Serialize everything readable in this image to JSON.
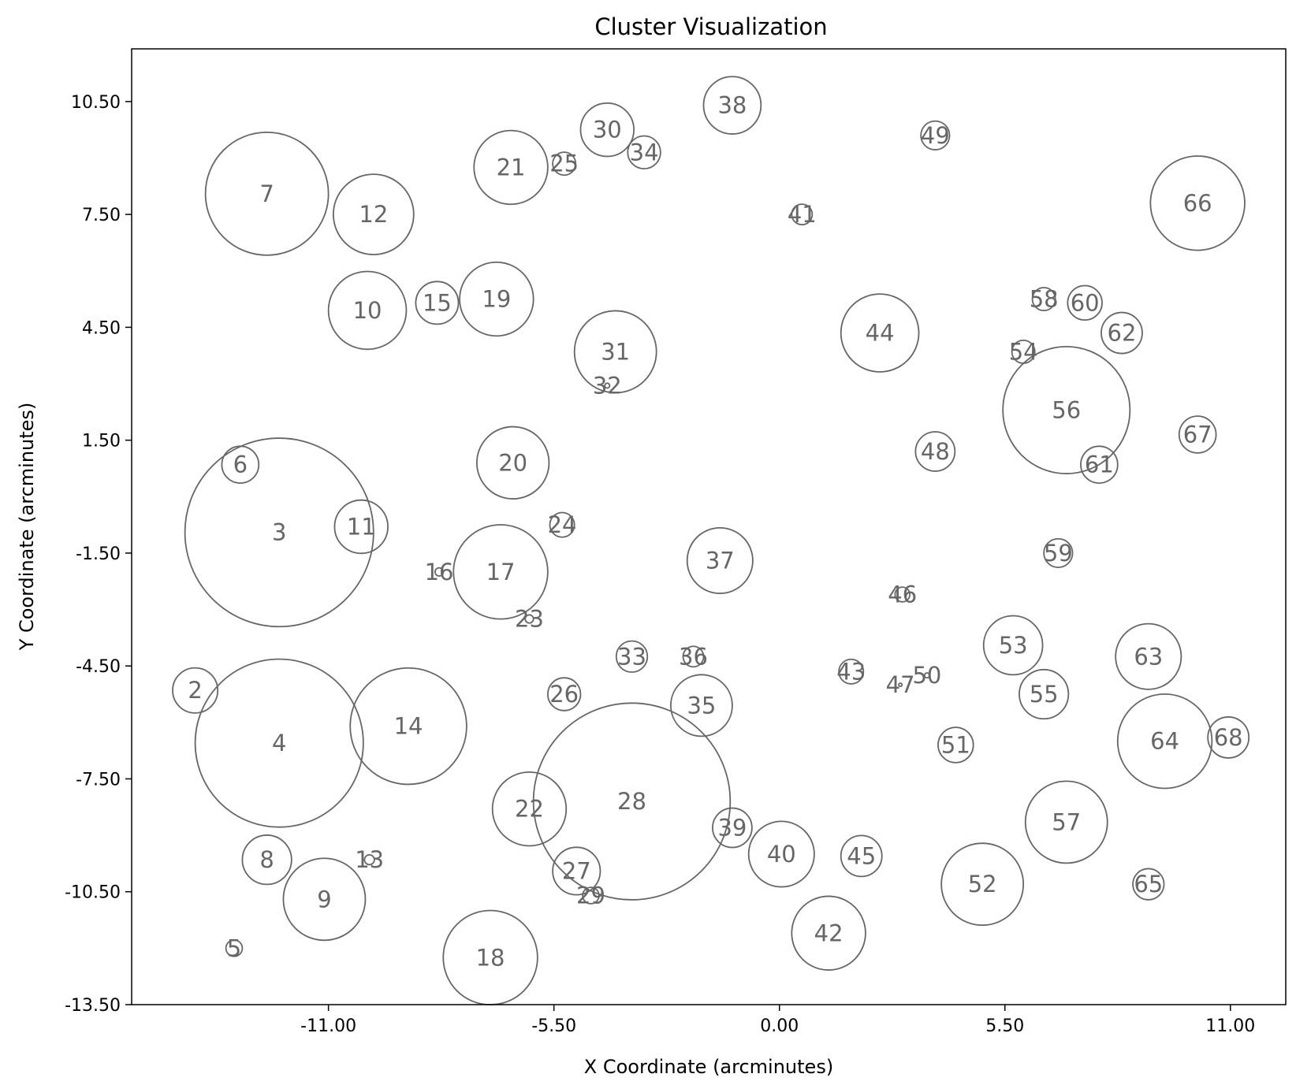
{
  "chart_data": {
    "type": "scatter",
    "title": "Cluster Visualization",
    "xlabel": "X Coordinate (arcminutes)",
    "ylabel": "Y Coordinate (arcminutes)",
    "xlim": [
      -15.8,
      12.35
    ],
    "ylim": [
      -13.5,
      11.9
    ],
    "xticks": [
      "-11.00",
      "-5.50",
      "0.00",
      "5.50",
      "11.00"
    ],
    "yticks": [
      "10.50",
      "7.50",
      "4.50",
      "1.50",
      "-1.50",
      "-4.50",
      "-7.50",
      "-10.50",
      "-13.50"
    ],
    "grid": false,
    "colors": {
      "circle_stroke": "#666666",
      "label": "#666666",
      "axes": "#000000"
    },
    "points": [
      {
        "id": "2",
        "x": -14.25,
        "y": -5.15,
        "r": 0.55
      },
      {
        "id": "3",
        "x": -12.2,
        "y": -0.95,
        "r": 2.3
      },
      {
        "id": "4",
        "x": -12.2,
        "y": -6.55,
        "r": 2.05
      },
      {
        "id": "5",
        "x": -13.3,
        "y": -12.0,
        "r": 0.2
      },
      {
        "id": "6",
        "x": -13.15,
        "y": 0.85,
        "r": 0.45
      },
      {
        "id": "7",
        "x": -12.5,
        "y": 8.05,
        "r": 1.5
      },
      {
        "id": "8",
        "x": -12.5,
        "y": -9.65,
        "r": 0.6
      },
      {
        "id": "9",
        "x": -11.1,
        "y": -10.7,
        "r": 1.0
      },
      {
        "id": "10",
        "x": -10.05,
        "y": 4.95,
        "r": 0.95
      },
      {
        "id": "11",
        "x": -10.2,
        "y": -0.8,
        "r": 0.65
      },
      {
        "id": "12",
        "x": -9.9,
        "y": 7.5,
        "r": 0.98
      },
      {
        "id": "13",
        "x": -10.0,
        "y": -9.65,
        "r": 0.12
      },
      {
        "id": "14",
        "x": -9.05,
        "y": -6.1,
        "r": 1.42
      },
      {
        "id": "15",
        "x": -8.35,
        "y": 5.15,
        "r": 0.52
      },
      {
        "id": "16",
        "x": -8.3,
        "y": -2.0,
        "r": 0.1
      },
      {
        "id": "17",
        "x": -6.8,
        "y": -2.0,
        "r": 1.15
      },
      {
        "id": "18",
        "x": -7.05,
        "y": -12.25,
        "r": 1.15
      },
      {
        "id": "19",
        "x": -6.9,
        "y": 5.25,
        "r": 0.9
      },
      {
        "id": "20",
        "x": -6.5,
        "y": 0.9,
        "r": 0.88
      },
      {
        "id": "21",
        "x": -6.55,
        "y": 8.75,
        "r": 0.9
      },
      {
        "id": "22",
        "x": -6.1,
        "y": -8.3,
        "r": 0.9
      },
      {
        "id": "23",
        "x": -6.1,
        "y": -3.25,
        "r": 0.1
      },
      {
        "id": "24",
        "x": -5.3,
        "y": -0.75,
        "r": 0.3
      },
      {
        "id": "25",
        "x": -5.25,
        "y": 8.85,
        "r": 0.28
      },
      {
        "id": "26",
        "x": -5.25,
        "y": -5.25,
        "r": 0.4
      },
      {
        "id": "27",
        "x": -4.95,
        "y": -9.95,
        "r": 0.58
      },
      {
        "id": "28",
        "x": -3.6,
        "y": -8.1,
        "r": 2.4
      },
      {
        "id": "29",
        "x": -4.6,
        "y": -10.6,
        "r": 0.2
      },
      {
        "id": "30",
        "x": -4.2,
        "y": 9.75,
        "r": 0.65
      },
      {
        "id": "31",
        "x": -4.0,
        "y": 3.85,
        "r": 1.0
      },
      {
        "id": "32",
        "x": -4.2,
        "y": 2.95,
        "r": 0.06
      },
      {
        "id": "33",
        "x": -3.6,
        "y": -4.25,
        "r": 0.38
      },
      {
        "id": "34",
        "x": -3.3,
        "y": 9.15,
        "r": 0.4
      },
      {
        "id": "35",
        "x": -1.9,
        "y": -5.55,
        "r": 0.75
      },
      {
        "id": "36",
        "x": -2.1,
        "y": -4.25,
        "r": 0.25
      },
      {
        "id": "37",
        "x": -1.45,
        "y": -1.7,
        "r": 0.8
      },
      {
        "id": "38",
        "x": -1.15,
        "y": 10.4,
        "r": 0.7
      },
      {
        "id": "39",
        "x": -1.15,
        "y": -8.8,
        "r": 0.48
      },
      {
        "id": "40",
        "x": 0.05,
        "y": -9.5,
        "r": 0.8
      },
      {
        "id": "41",
        "x": 0.55,
        "y": 7.5,
        "r": 0.25
      },
      {
        "id": "42",
        "x": 1.2,
        "y": -11.6,
        "r": 0.9
      },
      {
        "id": "43",
        "x": 1.75,
        "y": -4.65,
        "r": 0.3
      },
      {
        "id": "44",
        "x": 2.45,
        "y": 4.35,
        "r": 0.95
      },
      {
        "id": "45",
        "x": 2.0,
        "y": -9.55,
        "r": 0.5
      },
      {
        "id": "46",
        "x": 3.0,
        "y": -2.6,
        "r": 0.18
      },
      {
        "id": "47",
        "x": 2.95,
        "y": -5.0,
        "r": 0.04
      },
      {
        "id": "48",
        "x": 3.8,
        "y": 1.2,
        "r": 0.48
      },
      {
        "id": "49",
        "x": 3.8,
        "y": 9.6,
        "r": 0.35
      },
      {
        "id": "50",
        "x": 3.6,
        "y": -4.75,
        "r": 0.06
      },
      {
        "id": "51",
        "x": 4.3,
        "y": -6.6,
        "r": 0.43
      },
      {
        "id": "52",
        "x": 4.95,
        "y": -10.3,
        "r": 1.0
      },
      {
        "id": "53",
        "x": 5.7,
        "y": -3.95,
        "r": 0.72
      },
      {
        "id": "54",
        "x": 5.95,
        "y": 3.85,
        "r": 0.28
      },
      {
        "id": "55",
        "x": 6.45,
        "y": -5.25,
        "r": 0.6
      },
      {
        "id": "56",
        "x": 7.0,
        "y": 2.3,
        "r": 1.55
      },
      {
        "id": "57",
        "x": 7.0,
        "y": -8.65,
        "r": 1.0
      },
      {
        "id": "58",
        "x": 6.45,
        "y": 5.25,
        "r": 0.28
      },
      {
        "id": "59",
        "x": 6.8,
        "y": -1.5,
        "r": 0.35
      },
      {
        "id": "60",
        "x": 7.45,
        "y": 5.15,
        "r": 0.42
      },
      {
        "id": "61",
        "x": 7.8,
        "y": 0.85,
        "r": 0.45
      },
      {
        "id": "62",
        "x": 8.35,
        "y": 4.35,
        "r": 0.5
      },
      {
        "id": "63",
        "x": 9.0,
        "y": -4.25,
        "r": 0.8
      },
      {
        "id": "64",
        "x": 9.4,
        "y": -6.5,
        "r": 1.15
      },
      {
        "id": "65",
        "x": 9.0,
        "y": -10.3,
        "r": 0.38
      },
      {
        "id": "66",
        "x": 10.2,
        "y": 7.8,
        "r": 1.15
      },
      {
        "id": "67",
        "x": 10.2,
        "y": 1.65,
        "r": 0.45
      },
      {
        "id": "68",
        "x": 10.95,
        "y": -6.4,
        "r": 0.5
      }
    ]
  }
}
